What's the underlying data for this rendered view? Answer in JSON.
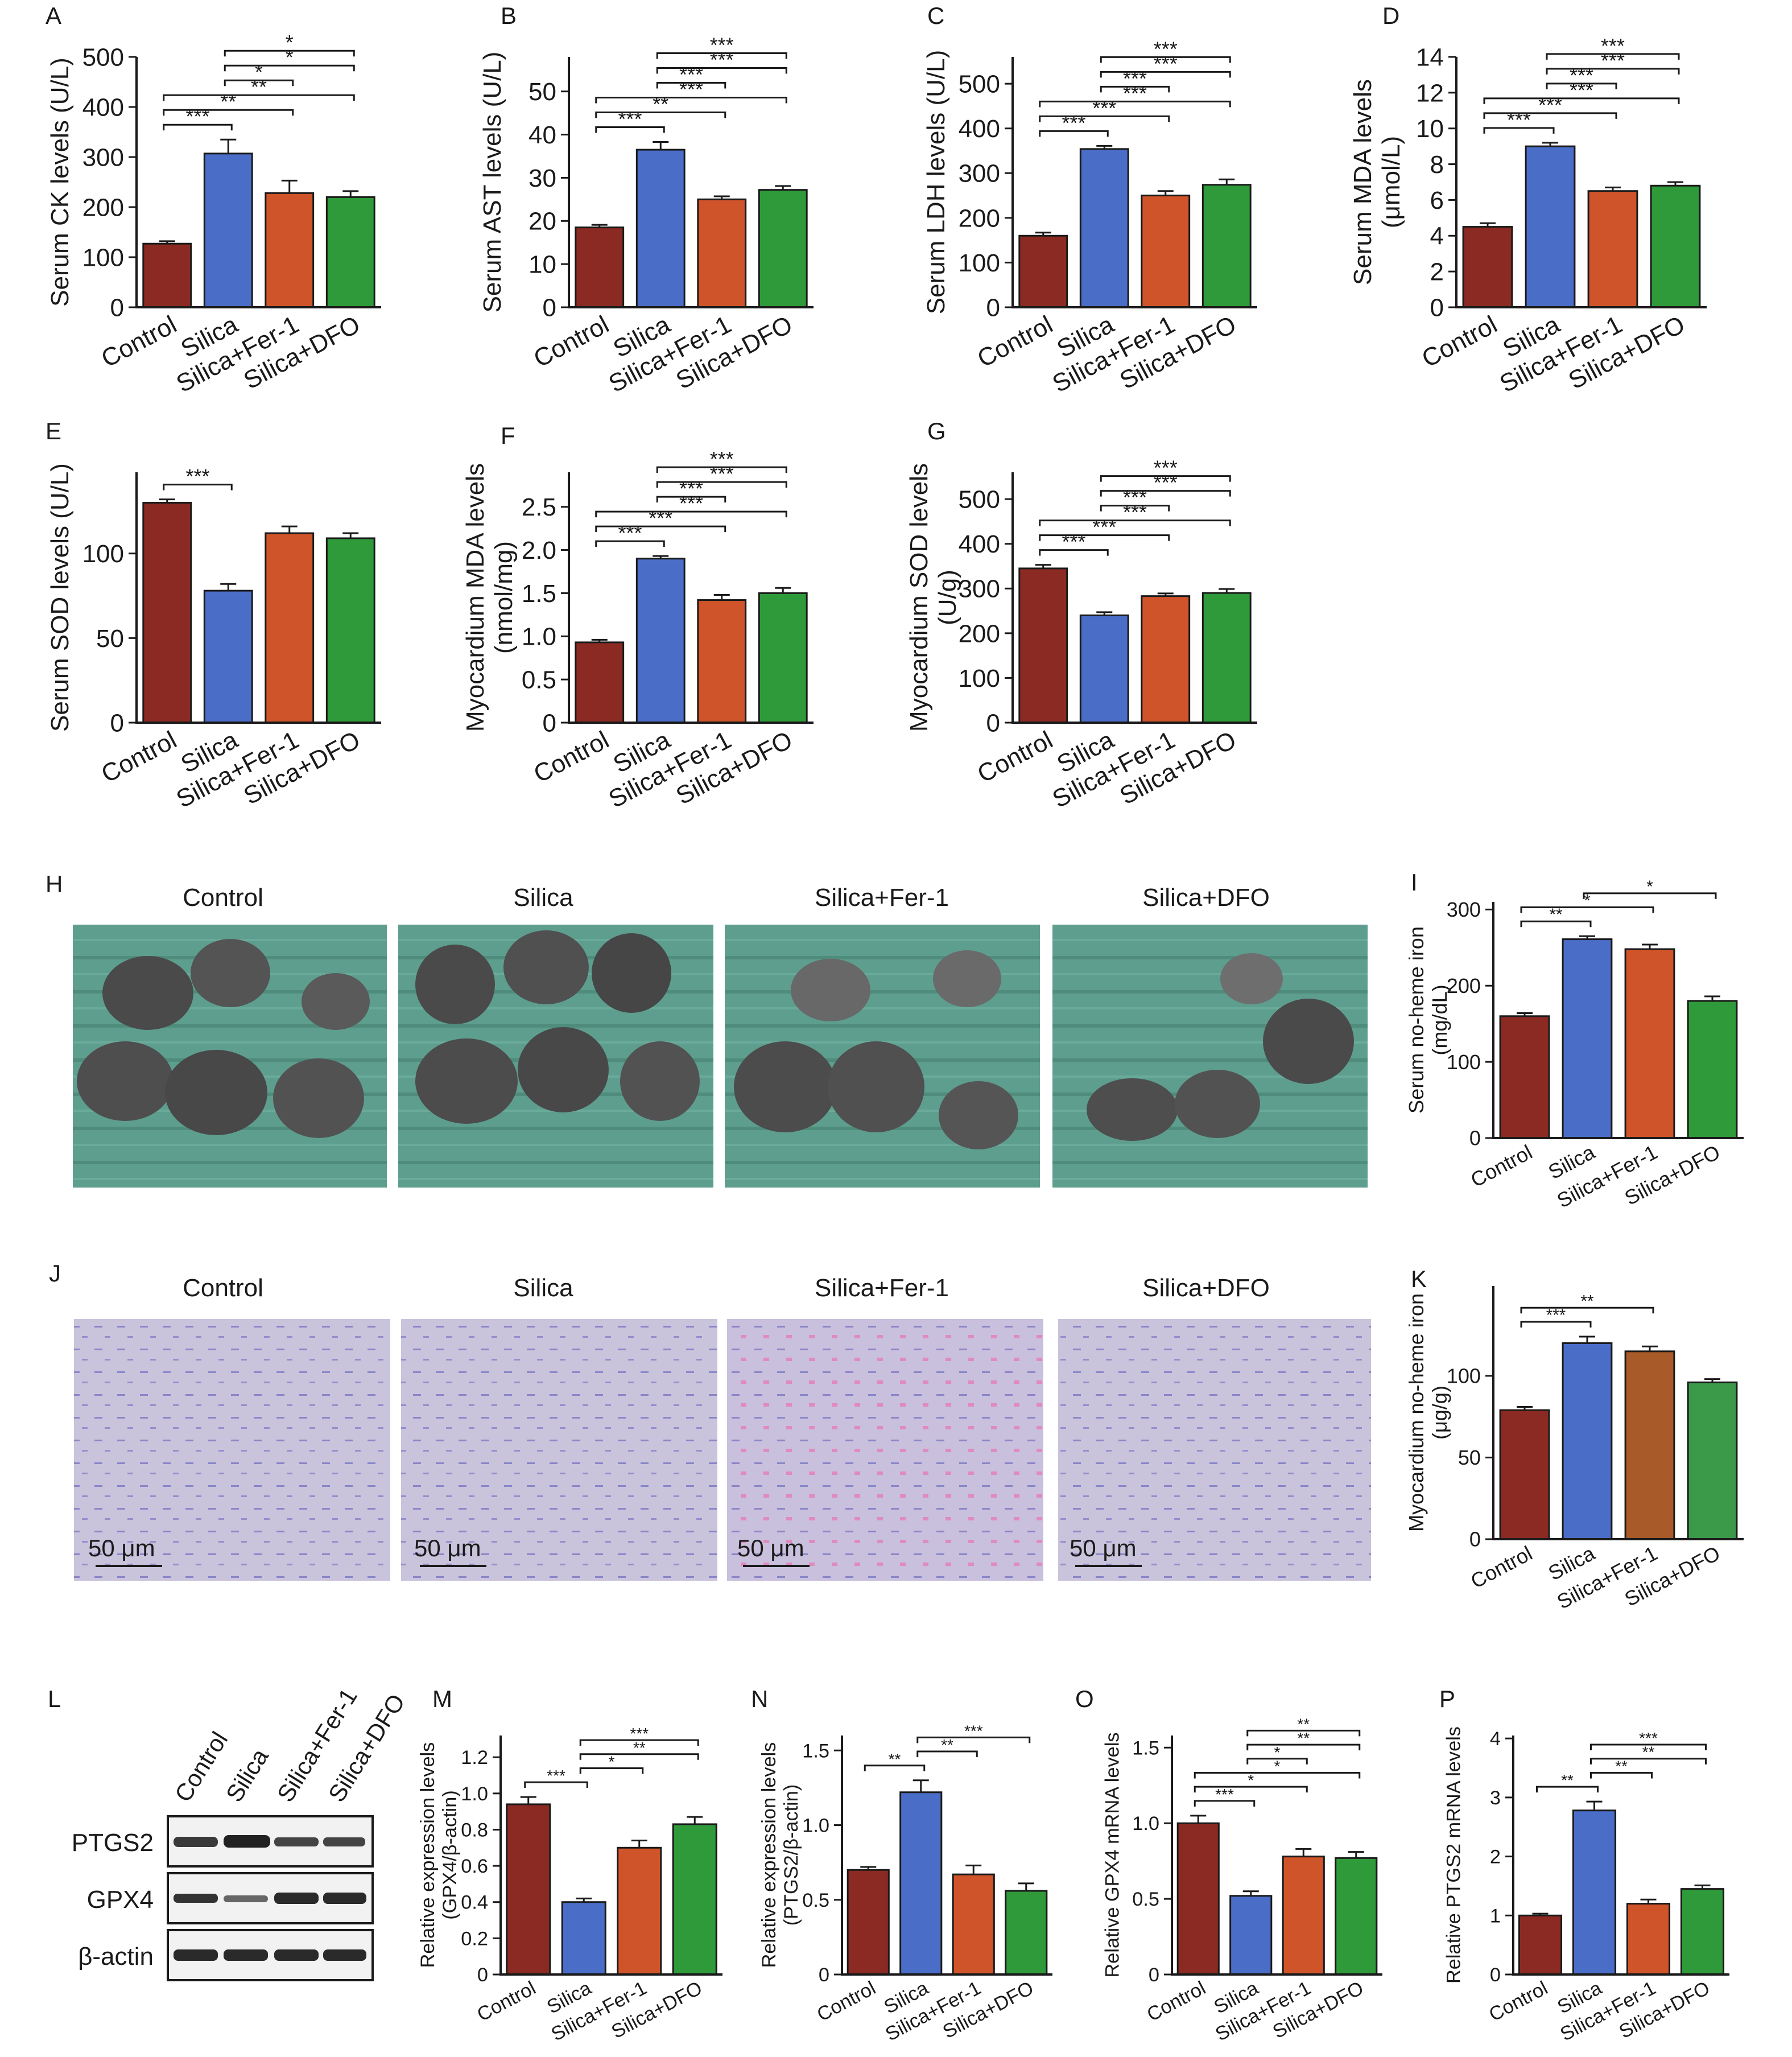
{
  "colors": {
    "control": "#8b2a22",
    "silica": "#4a6ec8",
    "fer1": "#d0542a",
    "dfo": "#2f9a3a",
    "fer1_alt": "#a85a28",
    "dfo_alt": "#3a9a4a"
  },
  "groups": [
    "Control",
    "Silica",
    "Silica+Fer-1",
    "Silica+DFO"
  ],
  "chart_data": [
    {
      "id": "A",
      "type": "bar",
      "panel_label": "A",
      "ylabel": "Serum CK levels (U/L)",
      "categories": [
        "Control",
        "Silica",
        "Silica+Fer-1",
        "Silica+DFO"
      ],
      "values": [
        127,
        307,
        228,
        220
      ],
      "errors": [
        5,
        28,
        25,
        12
      ],
      "ylim": [
        0,
        500
      ],
      "yticks": [
        "0",
        "100",
        "200",
        "300",
        "400",
        "500"
      ],
      "sig": [
        {
          "from": 0,
          "to": 1,
          "label": "***"
        },
        {
          "from": 0,
          "to": 2,
          "label": "**"
        },
        {
          "from": 0,
          "to": 3,
          "label": "**"
        },
        {
          "from": 1,
          "to": 2,
          "label": "*"
        },
        {
          "from": 1,
          "to": 3,
          "label": "*"
        },
        {
          "from": 1,
          "to": 3,
          "label": "*"
        }
      ]
    },
    {
      "id": "B",
      "type": "bar",
      "panel_label": "B",
      "ylabel": "Serum AST levels (U/L)",
      "categories": [
        "Control",
        "Silica",
        "Silica+Fer-1",
        "Silica+DFO"
      ],
      "values": [
        18.5,
        36.5,
        25,
        27.2
      ],
      "errors": [
        0.6,
        1.8,
        0.7,
        0.9
      ],
      "ylim": [
        0,
        58
      ],
      "yticks": [
        "0",
        "10",
        "20",
        "30",
        "40",
        "50"
      ],
      "sig": [
        {
          "from": 0,
          "to": 1,
          "label": "***"
        },
        {
          "from": 0,
          "to": 2,
          "label": "**"
        },
        {
          "from": 0,
          "to": 3,
          "label": "***"
        },
        {
          "from": 1,
          "to": 2,
          "label": "***"
        },
        {
          "from": 1,
          "to": 3,
          "label": "***"
        },
        {
          "from": 1,
          "to": 3,
          "label": "***"
        }
      ]
    },
    {
      "id": "C",
      "type": "bar",
      "panel_label": "C",
      "ylabel": "Serum LDH levels (U/L)",
      "categories": [
        "Control",
        "Silica",
        "Silica+Fer-1",
        "Silica+DFO"
      ],
      "values": [
        160,
        354,
        250,
        274
      ],
      "errors": [
        7,
        7,
        10,
        12
      ],
      "ylim": [
        0,
        560
      ],
      "yticks": [
        "0",
        "100",
        "200",
        "300",
        "400",
        "500"
      ],
      "sig": [
        {
          "from": 0,
          "to": 1,
          "label": "***"
        },
        {
          "from": 0,
          "to": 2,
          "label": "***"
        },
        {
          "from": 0,
          "to": 3,
          "label": "***"
        },
        {
          "from": 1,
          "to": 2,
          "label": "***"
        },
        {
          "from": 1,
          "to": 3,
          "label": "***"
        },
        {
          "from": 1,
          "to": 3,
          "label": "***"
        }
      ]
    },
    {
      "id": "D",
      "type": "bar",
      "panel_label": "D",
      "ylabel": "Serum MDA levels",
      "ylabel2": "(μmol/L)",
      "categories": [
        "Control",
        "Silica",
        "Silica+Fer-1",
        "Silica+DFO"
      ],
      "values": [
        4.5,
        9,
        6.5,
        6.8
      ],
      "errors": [
        0.2,
        0.2,
        0.2,
        0.2
      ],
      "ylim": [
        0,
        14
      ],
      "yticks": [
        "0",
        "2",
        "4",
        "6",
        "8",
        "10",
        "12",
        "14"
      ],
      "sig": [
        {
          "from": 0,
          "to": 1,
          "label": "***"
        },
        {
          "from": 0,
          "to": 2,
          "label": "***"
        },
        {
          "from": 0,
          "to": 3,
          "label": "***"
        },
        {
          "from": 1,
          "to": 2,
          "label": "***"
        },
        {
          "from": 1,
          "to": 3,
          "label": "***"
        },
        {
          "from": 1,
          "to": 3,
          "label": "***"
        }
      ]
    },
    {
      "id": "E",
      "type": "bar",
      "panel_label": "E",
      "ylabel": "Serum SOD levels (U/L)",
      "categories": [
        "Control",
        "Silica",
        "Silica+Fer-1",
        "Silica+DFO"
      ],
      "values": [
        130,
        78,
        112,
        109
      ],
      "errors": [
        2,
        4,
        4,
        3
      ],
      "ylim": [
        0,
        148
      ],
      "yticks": [
        "0",
        "50",
        "100"
      ],
      "sig": [
        {
          "from": 0,
          "to": 1,
          "label": "***"
        }
      ]
    },
    {
      "id": "F",
      "type": "bar",
      "panel_label": "F",
      "ylabel": "Myocardium MDA levels",
      "ylabel2": "(nmol/mg)",
      "categories": [
        "Control",
        "Silica",
        "Silica+Fer-1",
        "Silica+DFO"
      ],
      "values": [
        0.93,
        1.9,
        1.42,
        1.5
      ],
      "errors": [
        0.03,
        0.03,
        0.06,
        0.06
      ],
      "ylim": [
        0,
        2.9
      ],
      "yticks": [
        "0",
        "0.5",
        "1.0",
        "1.5",
        "2.0",
        "2.5"
      ],
      "sig": [
        {
          "from": 0,
          "to": 1,
          "label": "***"
        },
        {
          "from": 0,
          "to": 2,
          "label": "***"
        },
        {
          "from": 0,
          "to": 3,
          "label": "***"
        },
        {
          "from": 1,
          "to": 2,
          "label": "***"
        },
        {
          "from": 1,
          "to": 3,
          "label": "***"
        },
        {
          "from": 1,
          "to": 3,
          "label": "***"
        }
      ]
    },
    {
      "id": "G",
      "type": "bar",
      "panel_label": "G",
      "ylabel": "Myocardium SOD levels",
      "ylabel2": "(U/g)",
      "categories": [
        "Control",
        "Silica",
        "Silica+Fer-1",
        "Silica+DFO"
      ],
      "values": [
        345,
        240,
        283,
        290
      ],
      "errors": [
        8,
        7,
        6,
        9
      ],
      "ylim": [
        0,
        560
      ],
      "yticks": [
        "0",
        "100",
        "200",
        "300",
        "400",
        "500"
      ],
      "sig": [
        {
          "from": 0,
          "to": 1,
          "label": "***"
        },
        {
          "from": 0,
          "to": 2,
          "label": "***"
        },
        {
          "from": 0,
          "to": 3,
          "label": "***"
        },
        {
          "from": 1,
          "to": 2,
          "label": "***"
        },
        {
          "from": 1,
          "to": 3,
          "label": "***"
        },
        {
          "from": 1,
          "to": 3,
          "label": "***"
        }
      ]
    },
    {
      "id": "I",
      "type": "bar",
      "panel_label": "I",
      "ylabel": "Serum no-heme iron",
      "ylabel2": "(mg/dL)",
      "categories": [
        "Control",
        "Silica",
        "Silica+Fer-1",
        "Silica+DFO"
      ],
      "values": [
        160,
        261,
        248,
        180
      ],
      "errors": [
        4,
        4,
        6,
        6
      ],
      "ylim": [
        0,
        310
      ],
      "yticks": [
        "0",
        "100",
        "200",
        "300"
      ],
      "sig": [
        {
          "from": 0,
          "to": 1,
          "label": "**"
        },
        {
          "from": 0,
          "to": 2,
          "label": "*"
        },
        {
          "from": 1,
          "to": 3,
          "label": "*"
        }
      ]
    },
    {
      "id": "K",
      "type": "bar",
      "panel_label": "K",
      "ylabel": "Myocardium no-heme iron",
      "ylabel2": "(μg/g)",
      "categories": [
        "Control",
        "Silica",
        "Silica+Fer-1",
        "Silica+DFO"
      ],
      "values": [
        79,
        120,
        115,
        96
      ],
      "errors": [
        2,
        4,
        3,
        2
      ],
      "ylim": [
        0,
        155
      ],
      "yticks": [
        "0",
        "50",
        "100"
      ],
      "sig": [
        {
          "from": 0,
          "to": 1,
          "label": "***"
        },
        {
          "from": 0,
          "to": 2,
          "label": "**"
        }
      ]
    },
    {
      "id": "M",
      "type": "bar",
      "panel_label": "M",
      "ylabel": "Relative expression levels",
      "ylabel2": "(GPX4/β-actin)",
      "categories": [
        "Control",
        "Silica",
        "Silica+Fer-1",
        "Silica+DFO"
      ],
      "values": [
        0.94,
        0.4,
        0.7,
        0.83
      ],
      "errors": [
        0.04,
        0.02,
        0.04,
        0.04
      ],
      "ylim": [
        0,
        1.32
      ],
      "yticks": [
        "0",
        "0.2",
        "0.4",
        "0.6",
        "0.8",
        "1.0",
        "1.2"
      ],
      "sig": [
        {
          "from": 0,
          "to": 1,
          "label": "***"
        },
        {
          "from": 1,
          "to": 2,
          "label": "*"
        },
        {
          "from": 1,
          "to": 3,
          "label": "**"
        },
        {
          "from": 1,
          "to": 3,
          "label": "***"
        }
      ]
    },
    {
      "id": "N",
      "type": "bar",
      "panel_label": "N",
      "ylabel": "Relative expression levels",
      "ylabel2": "(PTGS2/β-actin)",
      "categories": [
        "Control",
        "Silica",
        "Silica+Fer-1",
        "Silica+DFO"
      ],
      "values": [
        0.7,
        1.22,
        0.67,
        0.56
      ],
      "errors": [
        0.02,
        0.08,
        0.06,
        0.05
      ],
      "ylim": [
        0,
        1.6
      ],
      "yticks": [
        "0",
        "0.5",
        "1.0",
        "1.5"
      ],
      "sig": [
        {
          "from": 0,
          "to": 1,
          "label": "**"
        },
        {
          "from": 1,
          "to": 2,
          "label": "**"
        },
        {
          "from": 1,
          "to": 3,
          "label": "***"
        }
      ]
    },
    {
      "id": "O",
      "type": "bar",
      "panel_label": "O",
      "ylabel": "Relative GPX4 mRNA levels",
      "categories": [
        "Control",
        "Silica",
        "Silica+Fer-1",
        "Silica+DFO"
      ],
      "values": [
        1.0,
        0.52,
        0.78,
        0.77
      ],
      "errors": [
        0.05,
        0.03,
        0.05,
        0.04
      ],
      "ylim": [
        0,
        1.58
      ],
      "yticks": [
        "0",
        "0.5",
        "1.0",
        "1.5"
      ],
      "sig": [
        {
          "from": 0,
          "to": 1,
          "label": "***"
        },
        {
          "from": 0,
          "to": 2,
          "label": "*"
        },
        {
          "from": 0,
          "to": 3,
          "label": "*"
        },
        {
          "from": 1,
          "to": 2,
          "label": "*"
        },
        {
          "from": 1,
          "to": 3,
          "label": "**"
        },
        {
          "from": 1,
          "to": 3,
          "label": "**"
        }
      ]
    },
    {
      "id": "P",
      "type": "bar",
      "panel_label": "P",
      "ylabel": "Relative PTGS2 mRNA levels",
      "categories": [
        "Control",
        "Silica",
        "Silica+Fer-1",
        "Silica+DFO"
      ],
      "values": [
        1.0,
        2.78,
        1.2,
        1.45
      ],
      "errors": [
        0.03,
        0.15,
        0.07,
        0.06
      ],
      "ylim": [
        0,
        4.05
      ],
      "yticks": [
        "0",
        "1",
        "2",
        "3",
        "4"
      ],
      "sig": [
        {
          "from": 0,
          "to": 1,
          "label": "**"
        },
        {
          "from": 1,
          "to": 2,
          "label": "**"
        },
        {
          "from": 1,
          "to": 3,
          "label": "**"
        },
        {
          "from": 1,
          "to": 3,
          "label": "***"
        }
      ]
    }
  ],
  "image_panels": {
    "H": {
      "panel_label": "H",
      "titles": [
        "Control",
        "Silica",
        "Silica+Fer-1",
        "Silica+DFO"
      ]
    },
    "J": {
      "panel_label": "J",
      "titles": [
        "Control",
        "Silica",
        "Silica+Fer-1",
        "Silica+DFO"
      ],
      "scale_bar": "50 μm"
    }
  },
  "western_blot": {
    "panel_label": "L",
    "lanes": [
      "Control",
      "Silica",
      "Silica+Fer-1",
      "Silica+DFO"
    ],
    "rows": [
      "PTGS2",
      "GPX4",
      "β-actin"
    ]
  }
}
